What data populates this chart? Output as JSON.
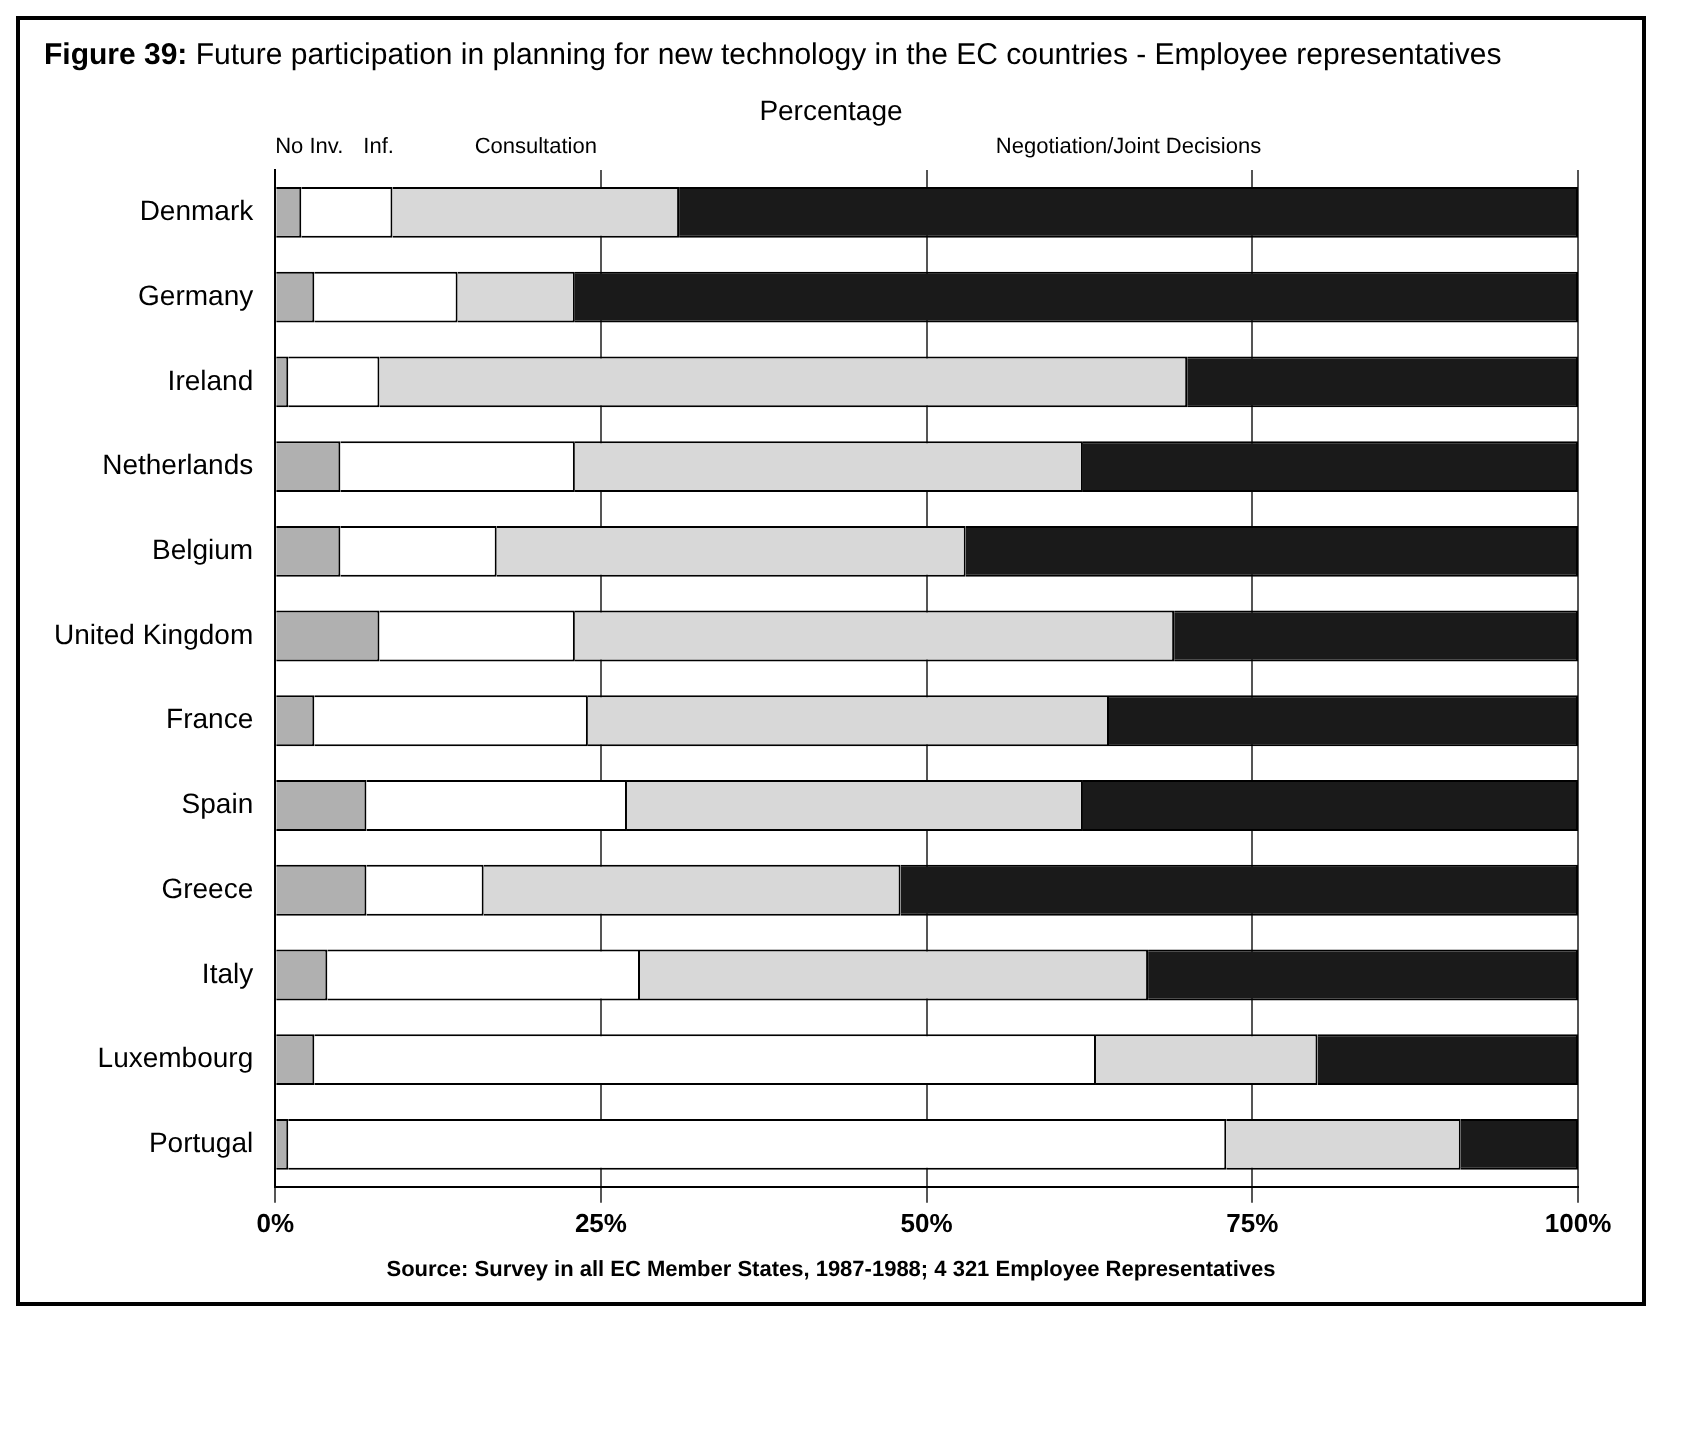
{
  "chart_data": {
    "type": "bar",
    "orientation": "horizontal",
    "stacked": true,
    "title": "Figure 39: Future participation in planning for new technology in the EC countries - Employee representatives",
    "subtitle": "Percentage",
    "categories": [
      "Denmark",
      "Germany",
      "Ireland",
      "Netherlands",
      "Belgium",
      "United Kingdom",
      "France",
      "Spain",
      "Greece",
      "Italy",
      "Luxembourg",
      "Portugal"
    ],
    "series": [
      {
        "name": "No Inv.",
        "color": "#b0b0b0",
        "values": [
          2,
          3,
          1,
          5,
          5,
          8,
          3,
          7,
          7,
          4,
          3,
          1
        ]
      },
      {
        "name": "Inf.",
        "color": "#ffffff",
        "values": [
          7,
          11,
          7,
          18,
          12,
          15,
          21,
          20,
          9,
          24,
          60,
          72
        ]
      },
      {
        "name": "Consultation",
        "color": "#d8d8d8",
        "values": [
          22,
          9,
          62,
          39,
          36,
          46,
          40,
          35,
          32,
          39,
          17,
          18
        ]
      },
      {
        "name": "Negotiation/Joint Decisions",
        "color": "#1a1a1a",
        "values": [
          69,
          77,
          30,
          38,
          47,
          31,
          36,
          38,
          52,
          33,
          20,
          9
        ]
      }
    ],
    "xlim": [
      0,
      100
    ],
    "xticks": [
      {
        "value": 0,
        "label": "0%"
      },
      {
        "value": 25,
        "label": "25%"
      },
      {
        "value": 50,
        "label": "50%"
      },
      {
        "value": 75,
        "label": "75%"
      },
      {
        "value": 100,
        "label": "100%"
      }
    ],
    "grid": "x",
    "legend": "top",
    "annotations": [
      "Source: Survey in all EC Member States, 1987-1988; 4 321 Employee Representatives"
    ]
  }
}
